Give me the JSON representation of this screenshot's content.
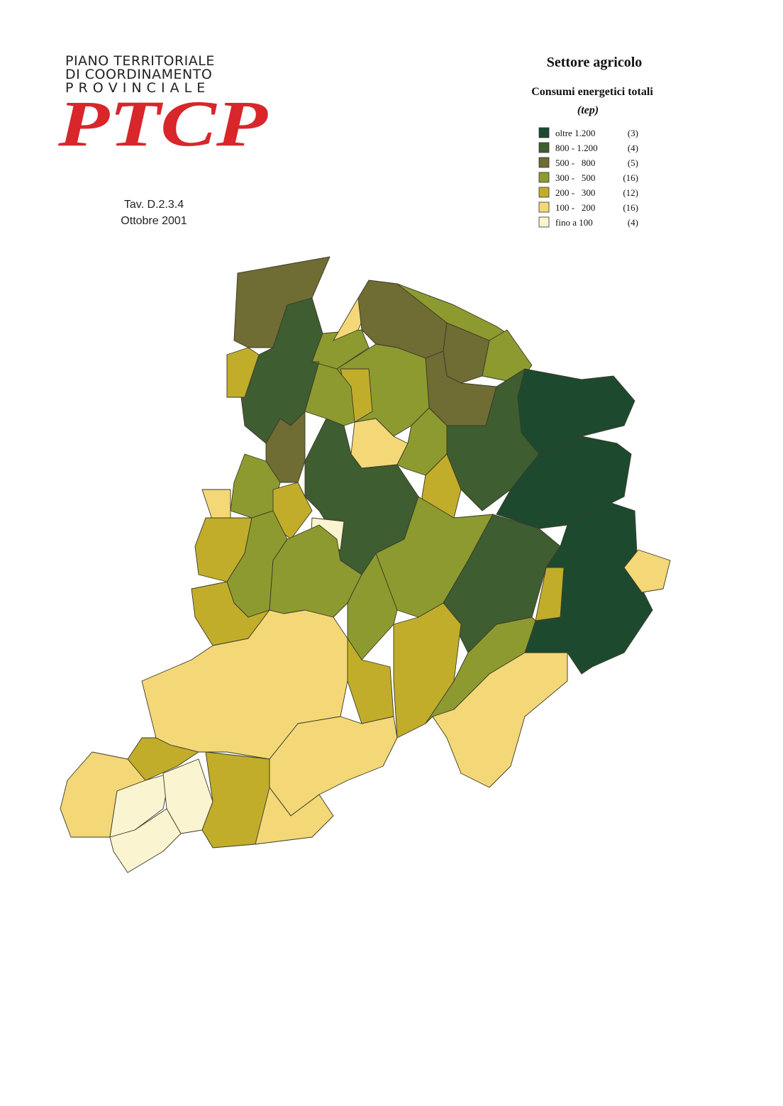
{
  "header": {
    "logo_lines": [
      "PIANO TERRITORIALE",
      "DI COORDINAMENTO",
      "P R O V I N C I A L E"
    ],
    "logo_mark": "PTCP",
    "table_ref": "Tav. D.2.3.4",
    "date": "Ottobre 2001"
  },
  "legend": {
    "title": "Settore agricolo",
    "subtitle": "Consumi energetici totali",
    "unit": "(tep)",
    "items": [
      {
        "label": "oltre 1.200",
        "count": "(3)",
        "color": "#1d4a2e"
      },
      {
        "label": "800 - 1.200",
        "count": "(4)",
        "color": "#3e5d31"
      },
      {
        "label": "500 -   800",
        "count": "(5)",
        "color": "#6f6c34"
      },
      {
        "label": "300 -   500",
        "count": "(16)",
        "color": "#8d9a2f"
      },
      {
        "label": "200 -   300",
        "count": "(12)",
        "color": "#c1ad2a"
      },
      {
        "label": "100 -   200",
        "count": "(16)",
        "color": "#f4d877"
      },
      {
        "label": "fino a 100",
        "count": "(4)",
        "color": "#fbf4d0"
      }
    ]
  }
}
